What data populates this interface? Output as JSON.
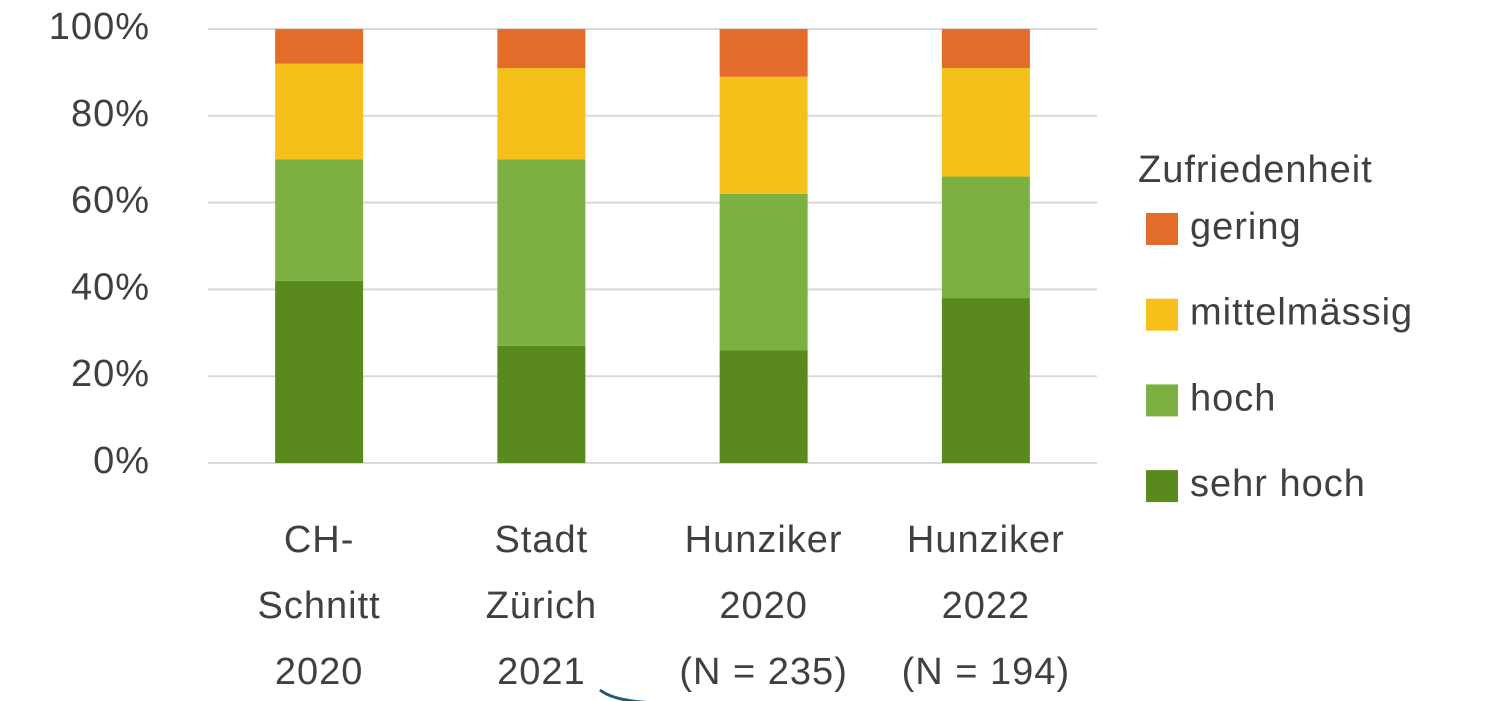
{
  "chart_data": {
    "type": "stacked_bar",
    "categories": [
      [
        "CH-",
        "Schnitt",
        "2020"
      ],
      [
        "Stadt",
        "Zürich",
        "2021"
      ],
      [
        "Hunziker",
        "2020",
        "(N = 235)"
      ],
      [
        "Hunziker",
        "2022",
        "(N = 194)"
      ]
    ],
    "series": [
      {
        "name": "sehr hoch",
        "color": "#5a8a1e",
        "values": [
          42,
          27,
          26,
          38
        ]
      },
      {
        "name": "hoch",
        "color": "#7cb041",
        "values": [
          28,
          43,
          36,
          28
        ]
      },
      {
        "name": "mittelmässig",
        "color": "#f5c01a",
        "values": [
          22,
          21,
          27,
          25
        ]
      },
      {
        "name": "gering",
        "color": "#e46c2b",
        "values": [
          8,
          9,
          11,
          9
        ]
      }
    ],
    "legend_title": "Zufriedenheit",
    "legend": "right",
    "ylim": [
      0,
      100
    ],
    "yticks": [
      {
        "value": 0,
        "label": "0%"
      },
      {
        "value": 20,
        "label": "20%"
      },
      {
        "value": 40,
        "label": "40%"
      },
      {
        "value": 60,
        "label": "60%"
      },
      {
        "value": 80,
        "label": "80%"
      },
      {
        "value": 100,
        "label": "100%"
      }
    ],
    "grid": true
  }
}
